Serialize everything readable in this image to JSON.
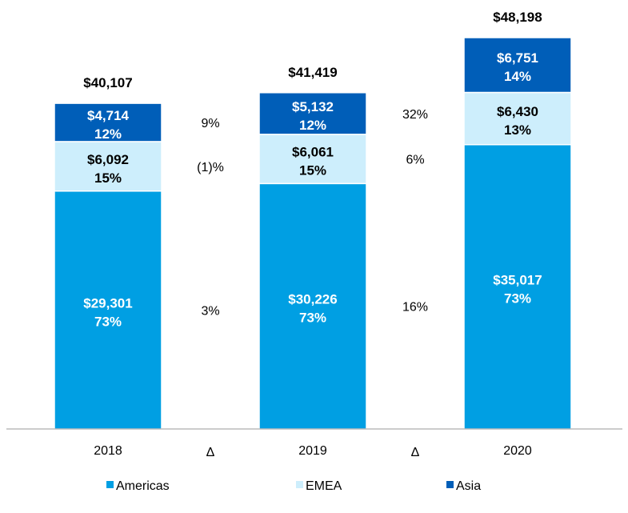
{
  "chart_data": {
    "type": "bar",
    "stacked": true,
    "categories": [
      "2018",
      "2019",
      "2020"
    ],
    "delta_axis_label": "Δ",
    "series": [
      {
        "name": "Americas",
        "color": "#009fe3",
        "label_color": "#ffffff",
        "values": [
          29301,
          30226,
          35017
        ],
        "value_labels": [
          "$29,301",
          "$30,226",
          "$35,017"
        ],
        "pct_labels": [
          "73%",
          "73%",
          "73%"
        ]
      },
      {
        "name": "EMEA",
        "color": "#cdeefc",
        "label_color": "#000000",
        "values": [
          6092,
          6061,
          6430
        ],
        "value_labels": [
          "$6,092",
          "$6,061",
          "$6,430"
        ],
        "pct_labels": [
          "15%",
          "15%",
          "13%"
        ]
      },
      {
        "name": "Asia",
        "color": "#005eb8",
        "label_color": "#ffffff",
        "values": [
          4714,
          5132,
          6751
        ],
        "value_labels": [
          "$4,714",
          "$5,132",
          "$6,751"
        ],
        "pct_labels": [
          "12%",
          "12%",
          "14%"
        ]
      }
    ],
    "totals": [
      40107,
      41419,
      48198
    ],
    "total_labels": [
      "$40,107",
      "$41,419",
      "$48,198"
    ],
    "deltas": [
      {
        "between": [
          "2018",
          "2019"
        ],
        "Americas": "3%",
        "EMEA": "(1)%",
        "Asia": "9%"
      },
      {
        "between": [
          "2019",
          "2020"
        ],
        "Americas": "16%",
        "EMEA": "6%",
        "Asia": "32%"
      }
    ],
    "title": "",
    "xlabel": "",
    "ylabel": "",
    "ylim": [
      0,
      48198
    ],
    "grid": false,
    "legend": "bottom"
  }
}
